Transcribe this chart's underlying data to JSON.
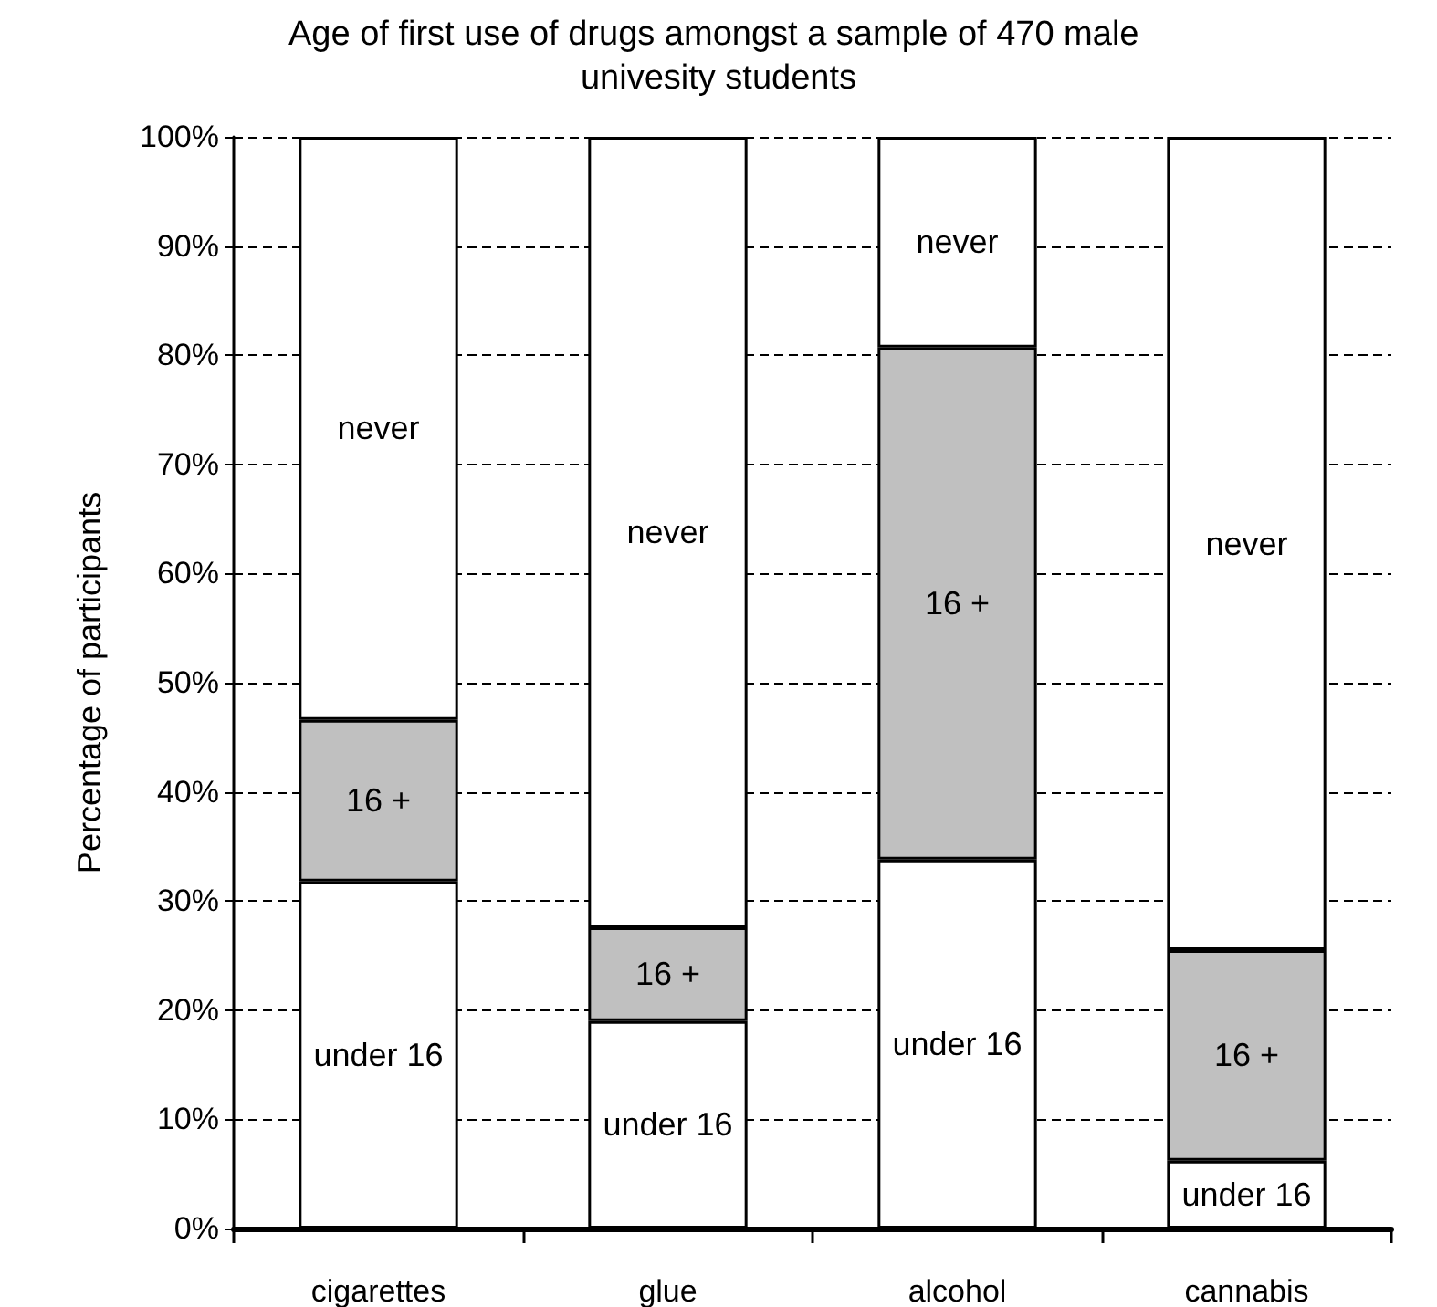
{
  "chart_data": {
    "type": "bar",
    "stacked": true,
    "title": "Age of first use of drugs amongst a sample of 470 male univesity students",
    "ylabel": "Percentage of participants",
    "categories": [
      "cigarettes",
      "glue",
      "alcohol",
      "cannabis"
    ],
    "series": [
      {
        "name": "under 16",
        "color": "#ffffff",
        "values": [
          31.8,
          19.0,
          33.8,
          6.2
        ]
      },
      {
        "name": "16 +",
        "color": "#c0c0c0",
        "values": [
          14.8,
          8.6,
          46.9,
          19.3
        ]
      },
      {
        "name": "never",
        "color": "#ffffff",
        "values": [
          53.4,
          72.4,
          19.3,
          74.5
        ]
      }
    ],
    "ylim": [
      0,
      100
    ],
    "yticks": [
      {
        "value": 0,
        "label": "0%"
      },
      {
        "value": 10,
        "label": "10%"
      },
      {
        "value": 20,
        "label": "20%"
      },
      {
        "value": 30,
        "label": "30%"
      },
      {
        "value": 40,
        "label": "40%"
      },
      {
        "value": 50,
        "label": "50%"
      },
      {
        "value": 60,
        "label": "60%"
      },
      {
        "value": 70,
        "label": "70%"
      },
      {
        "value": 80,
        "label": "80%"
      },
      {
        "value": 90,
        "label": "90%"
      },
      {
        "value": 100,
        "label": "100%"
      }
    ],
    "grid": "y",
    "legend": false
  }
}
